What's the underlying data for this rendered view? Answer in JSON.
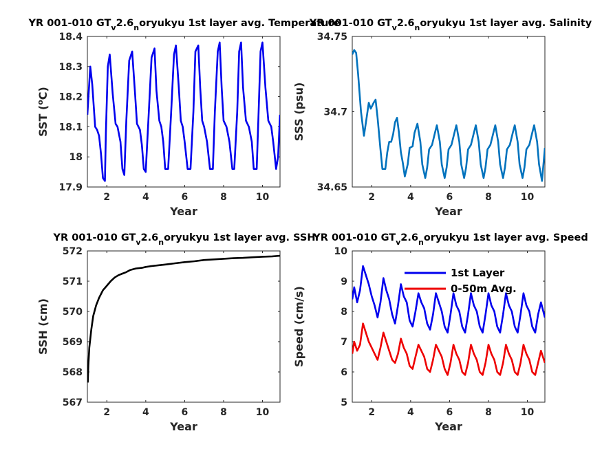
{
  "chart_data": [
    {
      "type": "line",
      "title_parts": [
        "YR 001-010 GT",
        "v",
        "2.6",
        "n",
        "oryukyu 1st layer avg. Temperature"
      ],
      "xlabel": "Year",
      "ylabel_parts": [
        "SST (",
        "o",
        "C)"
      ],
      "xlim": [
        1,
        10.9
      ],
      "ylim": [
        17.9,
        18.4
      ],
      "xticks": [
        2,
        4,
        6,
        8,
        10
      ],
      "yticks": [
        17.9,
        18,
        18.1,
        18.2,
        18.3,
        18.4
      ],
      "ytick_labels": [
        "17.9",
        "18",
        "18.1",
        "18.2",
        "18.3",
        "18.4"
      ],
      "series": [
        {
          "color": "#0000ee",
          "x": [
            1.0,
            1.15,
            1.25,
            1.4,
            1.5,
            1.6,
            1.7,
            1.8,
            1.9,
            1.95,
            2.05,
            2.15,
            2.3,
            2.45,
            2.55,
            2.7,
            2.8,
            2.9,
            3.0,
            3.15,
            3.3,
            3.45,
            3.55,
            3.7,
            3.8,
            3.9,
            4.0,
            4.15,
            4.3,
            4.45,
            4.55,
            4.7,
            4.8,
            4.9,
            5.0,
            5.15,
            5.3,
            5.45,
            5.55,
            5.7,
            5.8,
            5.9,
            6.0,
            6.15,
            6.3,
            6.45,
            6.55,
            6.7,
            6.8,
            6.9,
            7.0,
            7.15,
            7.3,
            7.45,
            7.55,
            7.7,
            7.8,
            7.9,
            8.0,
            8.15,
            8.3,
            8.45,
            8.55,
            8.7,
            8.8,
            8.9,
            9.0,
            9.15,
            9.3,
            9.45,
            9.55,
            9.7,
            9.8,
            9.9,
            10.0,
            10.15,
            10.3,
            10.45,
            10.55,
            10.7,
            10.8,
            10.9
          ],
          "y": [
            18.14,
            18.3,
            18.24,
            18.1,
            18.09,
            18.07,
            18.01,
            17.93,
            17.92,
            18.08,
            18.3,
            18.34,
            18.21,
            18.11,
            18.1,
            18.05,
            17.96,
            17.94,
            18.12,
            18.32,
            18.35,
            18.21,
            18.11,
            18.09,
            18.04,
            17.96,
            17.95,
            18.14,
            18.33,
            18.36,
            18.22,
            18.12,
            18.1,
            18.05,
            17.96,
            17.96,
            18.14,
            18.34,
            18.37,
            18.23,
            18.12,
            18.1,
            18.05,
            17.96,
            17.96,
            18.15,
            18.35,
            18.37,
            18.23,
            18.12,
            18.1,
            18.05,
            17.96,
            17.96,
            18.15,
            18.35,
            18.38,
            18.23,
            18.12,
            18.1,
            18.05,
            17.96,
            17.96,
            18.15,
            18.35,
            18.38,
            18.23,
            18.12,
            18.1,
            18.05,
            17.96,
            17.96,
            18.15,
            18.35,
            18.38,
            18.23,
            18.12,
            18.1,
            18.05,
            17.96,
            18.0,
            18.14
          ]
        }
      ]
    },
    {
      "type": "line",
      "title_parts": [
        "YR 001-010 GT",
        "v",
        "2.6",
        "n",
        "oryukyu 1st layer avg. Salinity"
      ],
      "xlabel": "Year",
      "ylabel_parts": [
        "SSS (psu)"
      ],
      "xlim": [
        1,
        10.9
      ],
      "ylim": [
        34.65,
        34.75
      ],
      "xticks": [
        2,
        4,
        6,
        8,
        10
      ],
      "yticks": [
        34.65,
        34.7,
        34.75
      ],
      "ytick_labels": [
        "34.65",
        "34.7",
        "34.75"
      ],
      "series": [
        {
          "color": "#0072bd",
          "x": [
            1.0,
            1.1,
            1.2,
            1.3,
            1.45,
            1.6,
            1.75,
            1.85,
            1.95,
            2.1,
            2.2,
            2.3,
            2.45,
            2.55,
            2.7,
            2.8,
            2.9,
            3.0,
            3.1,
            3.2,
            3.3,
            3.4,
            3.5,
            3.6,
            3.7,
            3.85,
            3.95,
            4.1,
            4.2,
            4.35,
            4.5,
            4.6,
            4.75,
            4.85,
            4.95,
            5.1,
            5.25,
            5.35,
            5.5,
            5.6,
            5.75,
            5.85,
            5.95,
            6.1,
            6.25,
            6.35,
            6.5,
            6.6,
            6.75,
            6.85,
            6.95,
            7.1,
            7.25,
            7.35,
            7.5,
            7.6,
            7.75,
            7.85,
            7.95,
            8.1,
            8.25,
            8.35,
            8.5,
            8.6,
            8.75,
            8.85,
            8.95,
            9.1,
            9.25,
            9.35,
            9.5,
            9.6,
            9.75,
            9.85,
            9.95,
            10.1,
            10.25,
            10.35,
            10.5,
            10.6,
            10.75,
            10.9
          ],
          "y": [
            34.738,
            34.741,
            34.739,
            34.725,
            34.7,
            34.684,
            34.697,
            34.706,
            34.702,
            34.706,
            34.708,
            34.696,
            34.675,
            34.662,
            34.662,
            34.673,
            34.68,
            34.68,
            34.685,
            34.693,
            34.696,
            34.686,
            34.673,
            34.666,
            34.657,
            34.665,
            34.676,
            34.677,
            34.686,
            34.692,
            34.68,
            34.665,
            34.656,
            34.663,
            34.675,
            34.678,
            34.686,
            34.691,
            34.68,
            34.665,
            34.656,
            34.663,
            34.675,
            34.678,
            34.686,
            34.691,
            34.68,
            34.665,
            34.656,
            34.663,
            34.675,
            34.678,
            34.686,
            34.691,
            34.68,
            34.665,
            34.656,
            34.663,
            34.675,
            34.678,
            34.686,
            34.691,
            34.68,
            34.665,
            34.656,
            34.663,
            34.675,
            34.678,
            34.686,
            34.691,
            34.68,
            34.665,
            34.656,
            34.663,
            34.675,
            34.678,
            34.686,
            34.691,
            34.68,
            34.665,
            34.654,
            34.676
          ]
        }
      ]
    },
    {
      "type": "line",
      "title_parts": [
        "YR 001-010 GT",
        "v",
        "2.6",
        "n",
        "oryukyu 1st layer avg. SSH"
      ],
      "xlabel": "Year",
      "ylabel_parts": [
        "SSH (cm)"
      ],
      "xlim": [
        1,
        10.9
      ],
      "ylim": [
        567,
        572
      ],
      "xticks": [
        2,
        4,
        6,
        8,
        10
      ],
      "yticks": [
        567,
        568,
        569,
        570,
        571,
        572
      ],
      "ytick_labels": [
        "567",
        "568",
        "569",
        "570",
        "571",
        "572"
      ],
      "series": [
        {
          "color": "#000000",
          "x": [
            1.02,
            1.05,
            1.1,
            1.2,
            1.3,
            1.45,
            1.6,
            1.8,
            2.0,
            2.2,
            2.4,
            2.6,
            2.8,
            3.0,
            3.2,
            3.5,
            3.8,
            4.0,
            4.3,
            4.6,
            5.0,
            5.5,
            6.0,
            6.5,
            7.0,
            7.5,
            8.0,
            8.5,
            9.0,
            9.5,
            10.0,
            10.5,
            10.9
          ],
          "y": [
            567.65,
            568.2,
            568.8,
            569.4,
            569.85,
            570.2,
            570.45,
            570.7,
            570.85,
            571.0,
            571.12,
            571.2,
            571.25,
            571.3,
            571.37,
            571.42,
            571.44,
            571.47,
            571.5,
            571.52,
            571.55,
            571.59,
            571.63,
            571.66,
            571.7,
            571.72,
            571.74,
            571.76,
            571.77,
            571.79,
            571.81,
            571.82,
            571.84
          ]
        }
      ]
    },
    {
      "type": "line",
      "title_parts": [
        "YR 001-010 GT",
        "v",
        "2.6",
        "n",
        "oryukyu 1st layer avg. Speed"
      ],
      "xlabel": "Year",
      "ylabel_parts": [
        "Speed (cm/s)"
      ],
      "xlim": [
        1,
        10.9
      ],
      "ylim": [
        5,
        10
      ],
      "xticks": [
        2,
        4,
        6,
        8,
        10
      ],
      "yticks": [
        5,
        6,
        7,
        8,
        9,
        10
      ],
      "ytick_labels": [
        "5",
        "6",
        "7",
        "8",
        "9",
        "10"
      ],
      "legend": {
        "placement": "top-right",
        "entries": [
          "1st Layer",
          "0-50m Avg."
        ]
      },
      "series": [
        {
          "name": "1st Layer",
          "color": "#0000ee",
          "x": [
            1.0,
            1.1,
            1.25,
            1.4,
            1.55,
            1.7,
            1.85,
            2.0,
            2.15,
            2.3,
            2.45,
            2.6,
            2.75,
            2.9,
            3.05,
            3.2,
            3.35,
            3.5,
            3.65,
            3.8,
            3.95,
            4.1,
            4.25,
            4.4,
            4.55,
            4.7,
            4.85,
            5.0,
            5.15,
            5.3,
            5.45,
            5.6,
            5.75,
            5.9,
            6.05,
            6.2,
            6.35,
            6.5,
            6.65,
            6.8,
            6.95,
            7.1,
            7.25,
            7.4,
            7.55,
            7.7,
            7.85,
            8.0,
            8.15,
            8.3,
            8.45,
            8.6,
            8.75,
            8.9,
            9.05,
            9.2,
            9.35,
            9.5,
            9.65,
            9.8,
            9.95,
            10.1,
            10.25,
            10.4,
            10.55,
            10.7,
            10.9
          ],
          "y": [
            8.4,
            8.8,
            8.3,
            8.7,
            9.5,
            9.2,
            8.9,
            8.5,
            8.2,
            7.8,
            8.3,
            9.1,
            8.7,
            8.4,
            7.9,
            7.6,
            8.2,
            8.9,
            8.5,
            8.3,
            7.7,
            7.5,
            8.0,
            8.6,
            8.3,
            8.1,
            7.6,
            7.4,
            7.9,
            8.6,
            8.3,
            8.0,
            7.5,
            7.3,
            7.9,
            8.6,
            8.2,
            8.0,
            7.5,
            7.3,
            7.9,
            8.6,
            8.2,
            8.0,
            7.5,
            7.3,
            7.9,
            8.6,
            8.2,
            8.0,
            7.5,
            7.3,
            7.9,
            8.6,
            8.2,
            8.0,
            7.5,
            7.3,
            7.9,
            8.6,
            8.2,
            8.0,
            7.5,
            7.3,
            7.9,
            8.3,
            7.8
          ]
        },
        {
          "name": "0-50m Avg.",
          "color": "#ee0000",
          "x": [
            1.0,
            1.1,
            1.25,
            1.4,
            1.55,
            1.7,
            1.85,
            2.0,
            2.15,
            2.3,
            2.45,
            2.6,
            2.75,
            2.9,
            3.05,
            3.2,
            3.35,
            3.5,
            3.65,
            3.8,
            3.95,
            4.1,
            4.25,
            4.4,
            4.55,
            4.7,
            4.85,
            5.0,
            5.15,
            5.3,
            5.45,
            5.6,
            5.75,
            5.9,
            6.05,
            6.2,
            6.35,
            6.5,
            6.65,
            6.8,
            6.95,
            7.1,
            7.25,
            7.4,
            7.55,
            7.7,
            7.85,
            8.0,
            8.15,
            8.3,
            8.45,
            8.6,
            8.75,
            8.9,
            9.05,
            9.2,
            9.35,
            9.5,
            9.65,
            9.8,
            9.95,
            10.1,
            10.25,
            10.4,
            10.55,
            10.7,
            10.9
          ],
          "y": [
            6.6,
            7.0,
            6.7,
            6.9,
            7.6,
            7.3,
            7.0,
            6.8,
            6.6,
            6.4,
            6.8,
            7.3,
            7.0,
            6.7,
            6.4,
            6.3,
            6.6,
            7.1,
            6.8,
            6.6,
            6.2,
            6.1,
            6.5,
            6.9,
            6.7,
            6.5,
            6.1,
            6.0,
            6.4,
            6.9,
            6.7,
            6.5,
            6.1,
            5.9,
            6.3,
            6.9,
            6.6,
            6.4,
            6.0,
            5.9,
            6.3,
            6.9,
            6.6,
            6.4,
            6.0,
            5.9,
            6.3,
            6.9,
            6.6,
            6.4,
            6.0,
            5.9,
            6.3,
            6.9,
            6.6,
            6.4,
            6.0,
            5.9,
            6.3,
            6.9,
            6.6,
            6.4,
            6.0,
            5.9,
            6.3,
            6.7,
            6.3
          ]
        }
      ]
    }
  ]
}
